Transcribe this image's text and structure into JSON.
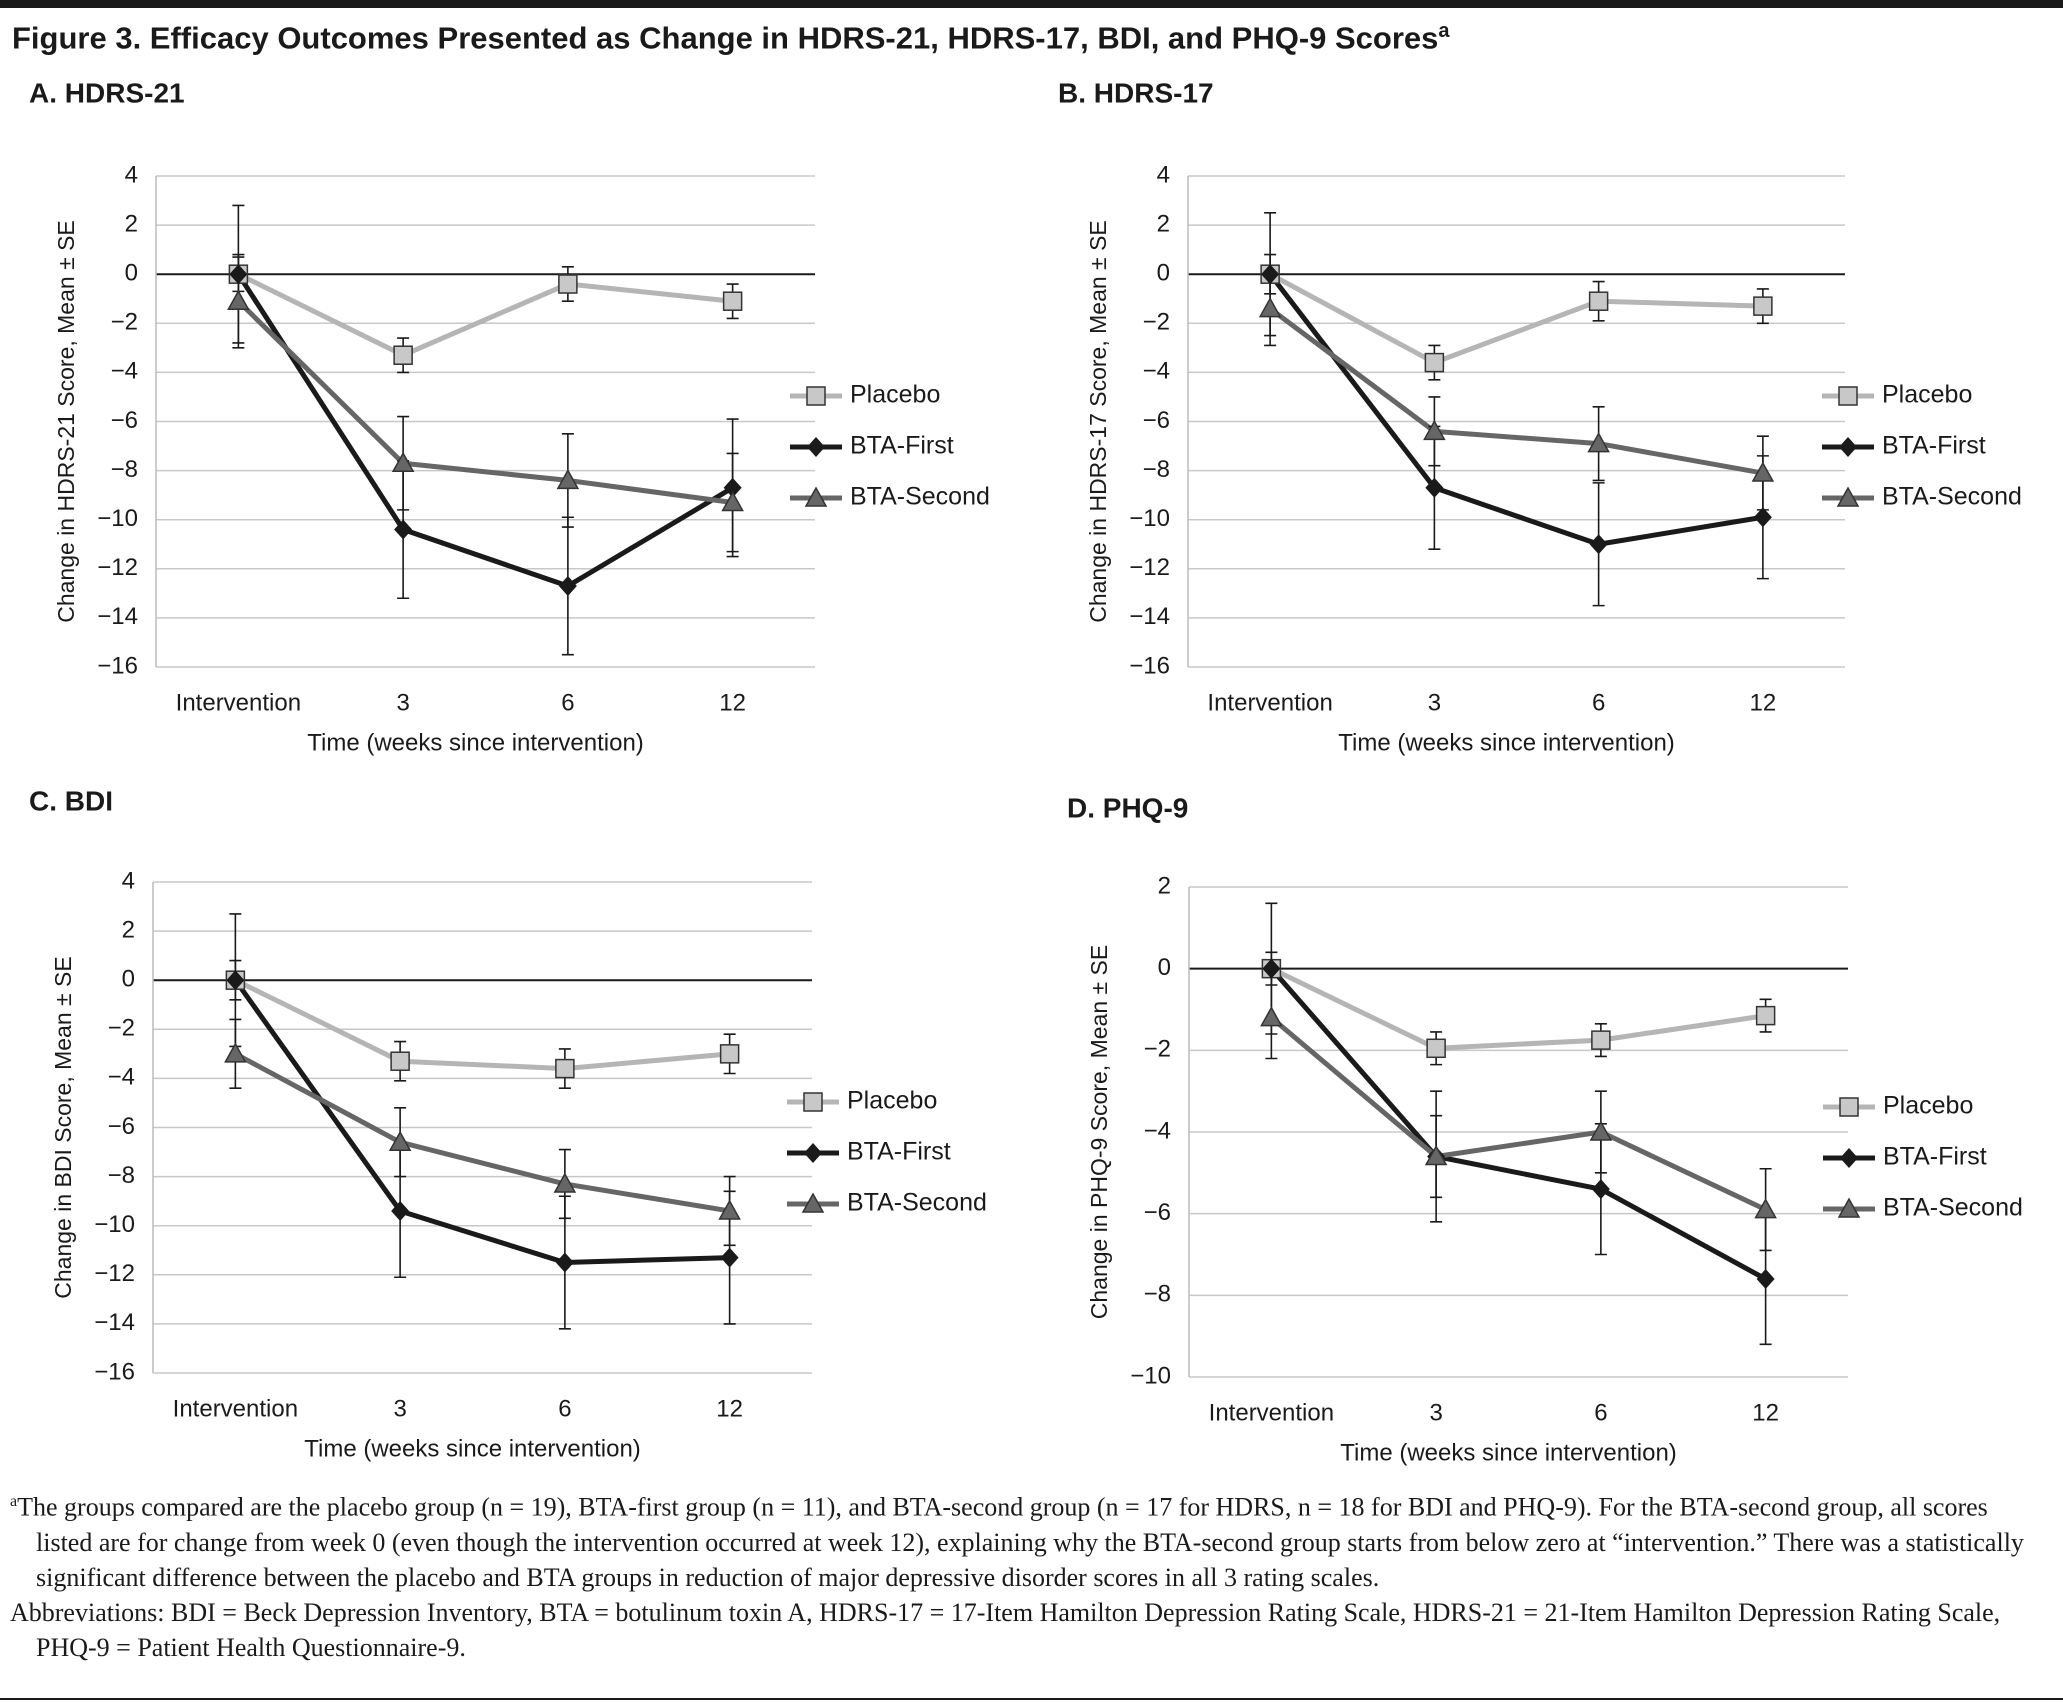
{
  "title": "Figure 3. Efficacy Outcomes Presented as Change in HDRS-21, HDRS-17, BDI, and PHQ-9 Scores",
  "title_superscript": "a",
  "chart_data": [
    {
      "type": "line",
      "title": "A. HDRS-21",
      "ylabel": "Change in HDRS-21 Score, Mean ± SE",
      "xlabel": "Time (weeks since intervention)",
      "categories": [
        "Intervention",
        "3",
        "6",
        "12"
      ],
      "ylim": [
        -16,
        4
      ],
      "yticks": [
        {
          "value": -16,
          "label": "−16"
        },
        {
          "value": -14,
          "label": "−14"
        },
        {
          "value": -12,
          "label": "−12"
        },
        {
          "value": -10,
          "label": "−10"
        },
        {
          "value": -8,
          "label": "−8"
        },
        {
          "value": -6,
          "label": "−6"
        },
        {
          "value": -4,
          "label": "−4"
        },
        {
          "value": -2,
          "label": "−2"
        },
        0,
        2,
        4
      ],
      "grid": true,
      "legend": "right",
      "series": [
        {
          "name": "Placebo",
          "color": "#b5b5b5",
          "marker": "square",
          "values": [
            0,
            -3.3,
            -0.4,
            -1.1
          ],
          "errors": [
            0.7,
            0.7,
            0.7,
            0.7
          ]
        },
        {
          "name": "BTA-First",
          "color": "#1a1a1a",
          "marker": "diamond",
          "values": [
            0,
            -10.4,
            -12.7,
            -8.7
          ],
          "errors": [
            2.8,
            2.8,
            2.8,
            2.8
          ]
        },
        {
          "name": "BTA-Second",
          "color": "#666666",
          "marker": "triangle",
          "values": [
            -1.1,
            -7.7,
            -8.4,
            -9.3
          ],
          "errors": [
            1.9,
            1.9,
            1.9,
            2.0
          ]
        }
      ]
    },
    {
      "type": "line",
      "title": "B. HDRS-17",
      "ylabel": "Change in HDRS-17 Score, Mean ± SE",
      "xlabel": "Time (weeks since intervention)",
      "categories": [
        "Intervention",
        "3",
        "6",
        "12"
      ],
      "ylim": [
        -16,
        4
      ],
      "yticks": [
        {
          "value": -16,
          "label": "−16"
        },
        {
          "value": -14,
          "label": "−14"
        },
        {
          "value": -12,
          "label": "−12"
        },
        {
          "value": -10,
          "label": "−10"
        },
        {
          "value": -8,
          "label": "−8"
        },
        {
          "value": -6,
          "label": "−6"
        },
        {
          "value": -4,
          "label": "−4"
        },
        {
          "value": -2,
          "label": "−2"
        },
        0,
        2,
        4
      ],
      "grid": true,
      "legend": "right",
      "series": [
        {
          "name": "Placebo",
          "color": "#b5b5b5",
          "marker": "square",
          "values": [
            0,
            -3.6,
            -1.1,
            -1.3
          ],
          "errors": [
            0.8,
            0.7,
            0.8,
            0.7
          ]
        },
        {
          "name": "BTA-First",
          "color": "#1a1a1a",
          "marker": "diamond",
          "values": [
            0,
            -8.7,
            -11,
            -9.9
          ],
          "errors": [
            2.5,
            2.5,
            2.5,
            2.5
          ]
        },
        {
          "name": "BTA-Second",
          "color": "#666666",
          "marker": "triangle",
          "values": [
            -1.4,
            -6.4,
            -6.9,
            -8.1
          ],
          "errors": [
            1.5,
            1.4,
            1.5,
            1.5
          ]
        }
      ]
    },
    {
      "type": "line",
      "title": "C. BDI",
      "ylabel": "Change in BDI Score, Mean ± SE",
      "xlabel": "Time (weeks since intervention)",
      "categories": [
        "Intervention",
        "3",
        "6",
        "12"
      ],
      "ylim": [
        -16,
        4
      ],
      "yticks": [
        {
          "value": -16,
          "label": "−16"
        },
        {
          "value": -14,
          "label": "−14"
        },
        {
          "value": -12,
          "label": "−12"
        },
        {
          "value": -10,
          "label": "−10"
        },
        {
          "value": -8,
          "label": "−8"
        },
        {
          "value": -6,
          "label": "−6"
        },
        {
          "value": -4,
          "label": "−4"
        },
        {
          "value": -2,
          "label": "−2"
        },
        0,
        2,
        4
      ],
      "grid": true,
      "legend": "right",
      "series": [
        {
          "name": "Placebo",
          "color": "#b5b5b5",
          "marker": "square",
          "values": [
            0,
            -3.3,
            -3.6,
            -3.0
          ],
          "errors": [
            0.8,
            0.8,
            0.8,
            0.8
          ]
        },
        {
          "name": "BTA-First",
          "color": "#1a1a1a",
          "marker": "diamond",
          "values": [
            0,
            -9.4,
            -11.5,
            -11.3
          ],
          "errors": [
            2.7,
            2.7,
            2.7,
            2.7
          ]
        },
        {
          "name": "BTA-Second",
          "color": "#666666",
          "marker": "triangle",
          "values": [
            -3,
            -6.6,
            -8.3,
            -9.4
          ],
          "errors": [
            1.4,
            1.4,
            1.4,
            1.4
          ]
        }
      ]
    },
    {
      "type": "line",
      "title": "D. PHQ-9",
      "ylabel": "Change in PHQ-9 Score, Mean ± SE",
      "xlabel": "Time (weeks since intervention)",
      "categories": [
        "Intervention",
        "3",
        "6",
        "12"
      ],
      "ylim": [
        -10,
        2
      ],
      "yticks": [
        {
          "value": -10,
          "label": "−10"
        },
        {
          "value": -8,
          "label": "−8"
        },
        {
          "value": -6,
          "label": "−6"
        },
        {
          "value": -4,
          "label": "−4"
        },
        {
          "value": -2,
          "label": "−2"
        },
        0,
        2
      ],
      "grid": true,
      "legend": "right",
      "series": [
        {
          "name": "Placebo",
          "color": "#b5b5b5",
          "marker": "square",
          "values": [
            0,
            -1.95,
            -1.75,
            -1.15
          ],
          "errors": [
            0.4,
            0.4,
            0.4,
            0.4
          ]
        },
        {
          "name": "BTA-First",
          "color": "#1a1a1a",
          "marker": "diamond",
          "values": [
            0,
            -4.6,
            -5.4,
            -7.6
          ],
          "errors": [
            1.6,
            1.6,
            1.6,
            1.6
          ]
        },
        {
          "name": "BTA-Second",
          "color": "#666666",
          "marker": "triangle",
          "values": [
            -1.2,
            -4.6,
            -4.0,
            -5.9
          ],
          "errors": [
            1.0,
            1.0,
            1.0,
            1.0
          ]
        }
      ]
    }
  ],
  "footnote": {
    "marker": "a",
    "text": "The groups compared are the placebo group (n = 19), BTA-first group (n = 11), and BTA-second group (n = 17 for HDRS, n = 18 for BDI and PHQ-9). For the BTA-second group, all scores listed are for change from week 0 (even though the intervention occurred at week 12), explaining why the BTA-second group starts from below zero at “intervention.” There was a statistically significant difference between the placebo and BTA groups in reduction of major depressive disorder scores in all 3 rating scales."
  },
  "abbreviations": "Abbreviations: BDI = Beck Depression Inventory, BTA = botulinum toxin A, HDRS-17 = 17-Item Hamilton Depression Rating Scale, HDRS-21 = 21-Item Hamilton Depression Rating Scale, PHQ-9 = Patient Health Questionnaire-9."
}
